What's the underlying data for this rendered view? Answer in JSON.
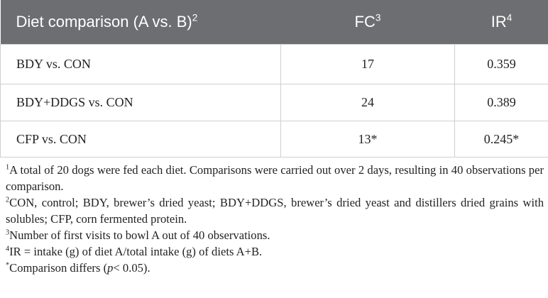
{
  "table": {
    "header": [
      {
        "text": "Diet comparison (A vs. B)",
        "note": "2"
      },
      {
        "text": "FC",
        "note": "3"
      },
      {
        "text": "IR",
        "note": "4"
      }
    ],
    "rows": [
      [
        "BDY vs. CON",
        17,
        0.359
      ],
      [
        "BDY+DDGS vs. CON",
        24,
        0.389
      ],
      [
        "CFP vs. CON",
        "13*",
        "0.245*"
      ]
    ]
  },
  "footnotes": [
    {
      "mark": "1",
      "text": "A total of 20 dogs were fed each diet. Comparisons were carried out over 2 days, resulting in 40 observations per comparison."
    },
    {
      "mark": "2",
      "text": "CON, control; BDY, brewer’s dried yeast; BDY+DDGS, brewer’s dried yeast and distillers dried grains with solubles; CFP, corn fermented protein."
    },
    {
      "mark": "3",
      "text": "Number of first visits to bowl A out of 40 observations."
    },
    {
      "mark": "4",
      "text": "IR = intake (g) of diet A/total intake (g) of diets A+B."
    },
    {
      "mark": "*",
      "text_before": "Comparison differs (",
      "italic": "p",
      "text_after": "< 0.05)."
    }
  ]
}
